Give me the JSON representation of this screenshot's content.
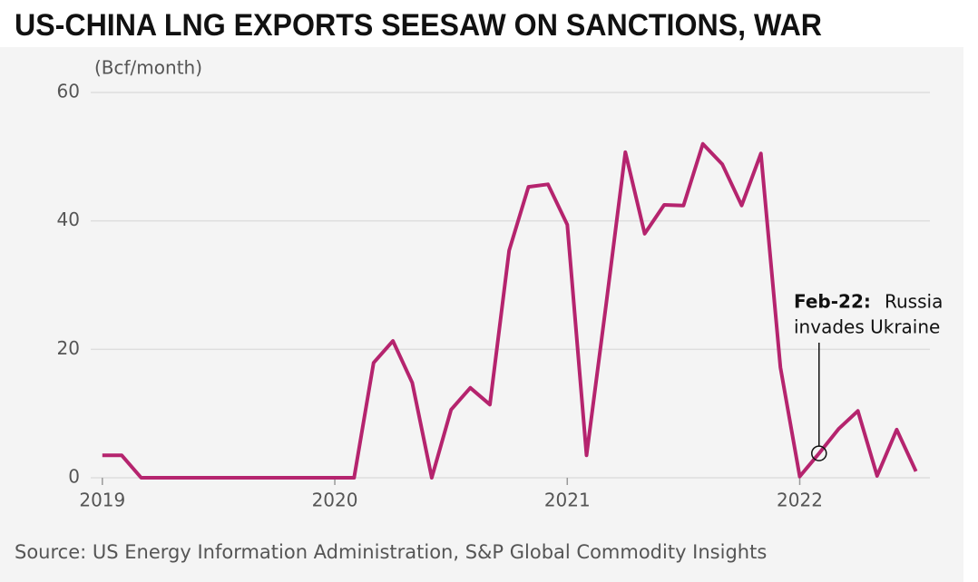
{
  "chart_data": {
    "type": "line",
    "title": "US-CHINA LNG EXPORTS SEESAW ON SANCTIONS, WAR",
    "y_label": "(Bcf/month)",
    "source": "Source: US Energy Information Administration, S&P Global Commodity Insights",
    "x": [
      2019,
      2019.083,
      2019.167,
      2019.25,
      2019.333,
      2019.417,
      2019.5,
      2019.583,
      2019.667,
      2019.75,
      2019.833,
      2019.917,
      2020,
      2020.083,
      2020.167,
      2020.25,
      2020.333,
      2020.417,
      2020.5,
      2020.583,
      2020.667,
      2020.75,
      2020.833,
      2020.917,
      2021,
      2021.083,
      2021.167,
      2021.25,
      2021.333,
      2021.417,
      2021.5,
      2021.583,
      2021.667,
      2021.75,
      2021.833,
      2021.917,
      2022,
      2022.083,
      2022.167,
      2022.25,
      2022.333,
      2022.417,
      2022.5
    ],
    "series": [
      {
        "name": "US-China LNG exports",
        "color": "#b5246e",
        "values": [
          3.5,
          3.5,
          0,
          0,
          0,
          0,
          0,
          0,
          0,
          0,
          0,
          0,
          0,
          0,
          17.9,
          21.3,
          14.8,
          0,
          10.6,
          14,
          11.4,
          35.4,
          45.3,
          45.7,
          39.4,
          3.5,
          27,
          50.7,
          38,
          42.5,
          42.4,
          52,
          48.8,
          42.4,
          50.5,
          17.2,
          0.2,
          3.8,
          7.6,
          10.4,
          0.3,
          7.5,
          1
        ]
      }
    ],
    "xlim": [
      2018.95,
      2022.56
    ],
    "xticks": [
      2019,
      2020,
      2021,
      2022
    ],
    "ylim": [
      0,
      60
    ],
    "yticks": [
      0,
      20,
      40,
      60
    ],
    "grid": true,
    "annotation": {
      "label": "Feb-22:",
      "text": [
        "Russia",
        "invades Ukraine"
      ],
      "x": 2022.083
    }
  }
}
